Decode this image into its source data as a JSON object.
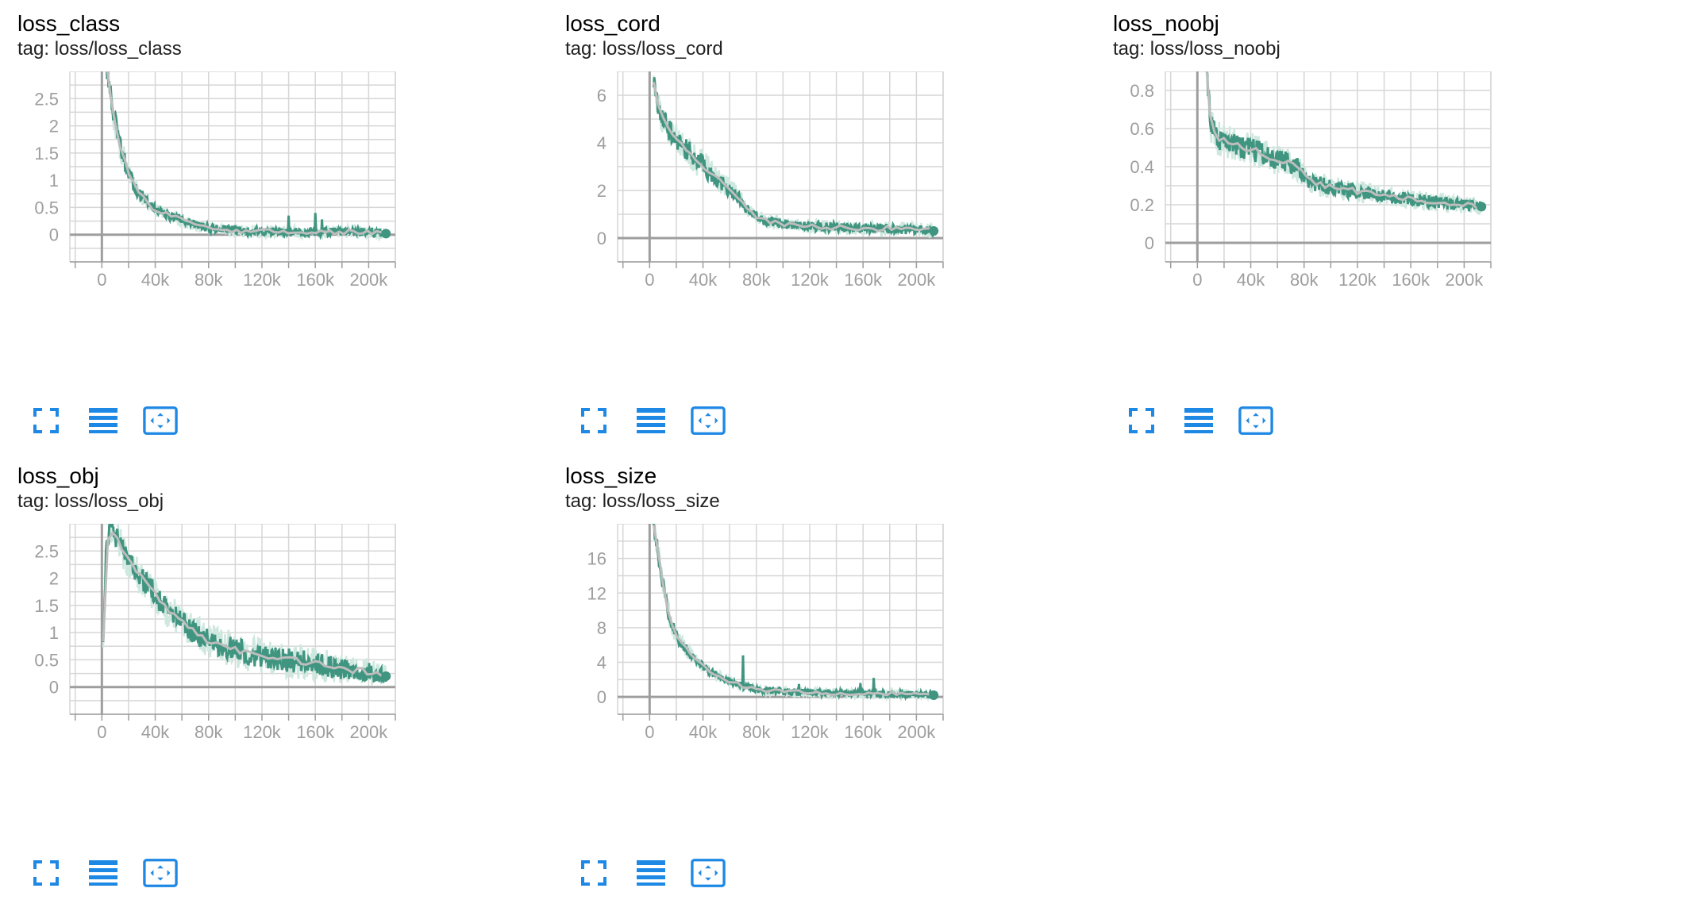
{
  "colors": {
    "raw": "#cfe8df",
    "series": "#3f9580",
    "smoothed": "#bdbdbd",
    "grid": "#d6d6d6",
    "axis": "#9e9e9e",
    "icon": "#1e88e5"
  },
  "toolbar": {
    "icons": [
      "fullscreen-icon",
      "data-table-icon",
      "fit-domain-icon"
    ]
  },
  "chart_data": [
    {
      "type": "line",
      "title": "loss_class",
      "tag": "tag: loss/loss_class",
      "xlim": [
        -24000,
        220000
      ],
      "ylim": [
        -0.5,
        3.0
      ],
      "x_ticks": [
        0,
        40000,
        80000,
        120000,
        160000,
        200000
      ],
      "x_tick_labels": [
        "0",
        "40k",
        "80k",
        "120k",
        "160k",
        "200k"
      ],
      "y_ticks": [
        0,
        0.5,
        1,
        1.5,
        2,
        2.5
      ],
      "y_tick_labels": [
        "0",
        "0.5",
        "1",
        "1.5",
        "2",
        "2.5"
      ],
      "y_minor_step": 0.25,
      "series": [
        {
          "x": [
            3000,
            8000,
            14000,
            20000,
            28000,
            38000,
            50000,
            65000,
            80000,
            100000,
            120000,
            140000,
            160000,
            180000,
            200000,
            213000
          ],
          "values": [
            3.2,
            2.3,
            1.6,
            1.1,
            0.75,
            0.5,
            0.35,
            0.22,
            0.12,
            0.08,
            0.06,
            0.05,
            0.05,
            0.05,
            0.05,
            0.02
          ],
          "noise": 0.18,
          "spikes": [
            [
              140000,
              0.35
            ],
            [
              160000,
              0.4
            ],
            [
              165000,
              0.28
            ]
          ]
        }
      ]
    },
    {
      "type": "line",
      "title": "loss_cord",
      "tag": "tag: loss/loss_cord",
      "xlim": [
        -24000,
        220000
      ],
      "ylim": [
        -1,
        7
      ],
      "x_ticks": [
        0,
        40000,
        80000,
        120000,
        160000,
        200000
      ],
      "x_tick_labels": [
        "0",
        "40k",
        "80k",
        "120k",
        "160k",
        "200k"
      ],
      "y_ticks": [
        0,
        2,
        4,
        6
      ],
      "y_tick_labels": [
        "0",
        "2",
        "4",
        "6"
      ],
      "y_minor_step": 1,
      "series": [
        {
          "x": [
            3000,
            8000,
            15000,
            25000,
            35000,
            45000,
            55000,
            65000,
            75000,
            85000,
            100000,
            120000,
            140000,
            160000,
            180000,
            200000,
            213000
          ],
          "values": [
            6.5,
            5.2,
            4.5,
            3.9,
            3.3,
            2.8,
            2.3,
            1.8,
            1.1,
            0.75,
            0.6,
            0.5,
            0.45,
            0.42,
            0.4,
            0.35,
            0.3
          ],
          "noise": 0.45,
          "spikes": []
        }
      ]
    },
    {
      "type": "line",
      "title": "loss_noobj",
      "tag": "tag: loss/loss_noobj",
      "xlim": [
        -24000,
        220000
      ],
      "ylim": [
        -0.1,
        0.9
      ],
      "x_ticks": [
        0,
        40000,
        80000,
        120000,
        160000,
        200000
      ],
      "x_tick_labels": [
        "0",
        "40k",
        "80k",
        "120k",
        "160k",
        "200k"
      ],
      "y_ticks": [
        0,
        0.2,
        0.4,
        0.6,
        0.8
      ],
      "y_tick_labels": [
        "0",
        "0.2",
        "0.4",
        "0.6",
        "0.8"
      ],
      "y_minor_step": 0.1,
      "series": [
        {
          "x": [
            6000,
            10000,
            15000,
            25000,
            35000,
            45000,
            55000,
            65000,
            75000,
            85000,
            100000,
            120000,
            140000,
            160000,
            180000,
            200000,
            213000
          ],
          "values": [
            1.0,
            0.62,
            0.55,
            0.53,
            0.5,
            0.48,
            0.45,
            0.43,
            0.4,
            0.32,
            0.29,
            0.27,
            0.25,
            0.23,
            0.21,
            0.2,
            0.19
          ],
          "noise": 0.06,
          "spikes": []
        }
      ]
    },
    {
      "type": "line",
      "title": "loss_obj",
      "tag": "tag: loss/loss_obj",
      "xlim": [
        -24000,
        220000
      ],
      "ylim": [
        -0.5,
        3.0
      ],
      "x_ticks": [
        0,
        40000,
        80000,
        120000,
        160000,
        200000
      ],
      "x_tick_labels": [
        "0",
        "40k",
        "80k",
        "120k",
        "160k",
        "200k"
      ],
      "y_ticks": [
        0,
        0.5,
        1,
        1.5,
        2,
        2.5
      ],
      "y_tick_labels": [
        "0",
        "0.5",
        "1",
        "1.5",
        "2",
        "2.5"
      ],
      "y_minor_step": 0.25,
      "series": [
        {
          "x": [
            1000,
            3000,
            6000,
            10000,
            20000,
            30000,
            40000,
            50000,
            60000,
            70000,
            80000,
            100000,
            120000,
            140000,
            160000,
            180000,
            200000,
            213000
          ],
          "values": [
            0.85,
            2.4,
            2.95,
            2.8,
            2.3,
            2.0,
            1.7,
            1.4,
            1.2,
            1.0,
            0.85,
            0.68,
            0.56,
            0.5,
            0.42,
            0.33,
            0.28,
            0.2
          ],
          "noise": 0.22,
          "spikes": []
        }
      ]
    },
    {
      "type": "line",
      "title": "loss_size",
      "tag": "tag: loss/loss_size",
      "xlim": [
        -24000,
        220000
      ],
      "ylim": [
        -2,
        20
      ],
      "x_ticks": [
        0,
        40000,
        80000,
        120000,
        160000,
        200000
      ],
      "x_tick_labels": [
        "0",
        "40k",
        "80k",
        "120k",
        "160k",
        "200k"
      ],
      "y_ticks": [
        0,
        4,
        8,
        12,
        16
      ],
      "y_tick_labels": [
        "0",
        "4",
        "8",
        "12",
        "16"
      ],
      "y_minor_step": 2,
      "series": [
        {
          "x": [
            3000,
            6000,
            10000,
            15000,
            20000,
            30000,
            40000,
            50000,
            60000,
            70000,
            80000,
            100000,
            120000,
            140000,
            160000,
            180000,
            200000,
            213000
          ],
          "values": [
            20,
            17,
            13,
            9,
            7,
            5,
            3.5,
            2.5,
            1.8,
            1.3,
            0.9,
            0.6,
            0.5,
            0.45,
            0.4,
            0.35,
            0.3,
            0.2
          ],
          "noise": 0.9,
          "spikes": [
            [
              70000,
              4.8
            ],
            [
              112000,
              1.5
            ],
            [
              158000,
              1.6
            ],
            [
              168000,
              2.2
            ]
          ]
        }
      ]
    }
  ]
}
